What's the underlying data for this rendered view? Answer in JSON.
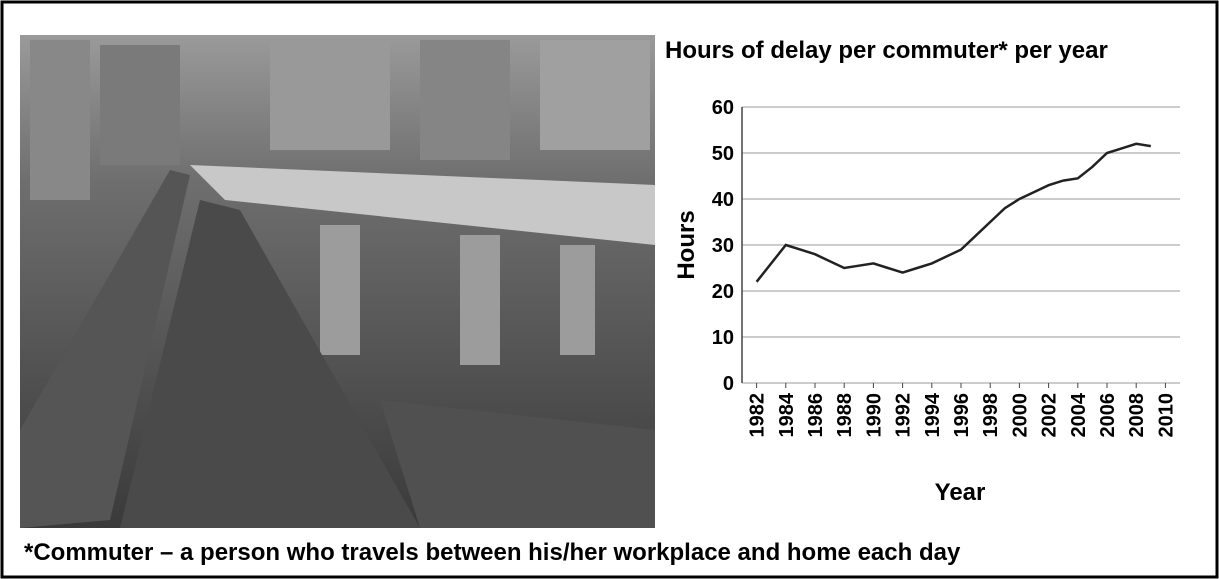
{
  "chart_data": {
    "type": "line",
    "title": "Hours of delay per commuter* per year",
    "y_label": "Hours",
    "x_label": "Year",
    "footnote": "*Commuter – a person who travels between his/her workplace and home each day",
    "x": [
      1982,
      1983,
      1984,
      1985,
      1986,
      1987,
      1988,
      1989,
      1990,
      1991,
      1992,
      1993,
      1994,
      1995,
      1996,
      1997,
      1998,
      1999,
      2000,
      2001,
      2002,
      2003,
      2004,
      2005,
      2006,
      2007,
      2008,
      2009
    ],
    "values": [
      22,
      26,
      30,
      29,
      28,
      26.5,
      25,
      25.5,
      26,
      25,
      24,
      25,
      26,
      27.5,
      29,
      32,
      35,
      38,
      40,
      41.5,
      43,
      44,
      44.5,
      47,
      50,
      51,
      52,
      51.5
    ],
    "color": "#222222",
    "xlim": [
      1981,
      2011
    ],
    "xticks": [
      1982,
      1984,
      1986,
      1988,
      1990,
      1992,
      1994,
      1996,
      1998,
      2000,
      2002,
      2004,
      2006,
      2008,
      2010
    ],
    "ylim": [
      0,
      60
    ],
    "yticks": [
      0,
      10,
      20,
      30,
      40,
      50,
      60
    ],
    "grid": true
  }
}
